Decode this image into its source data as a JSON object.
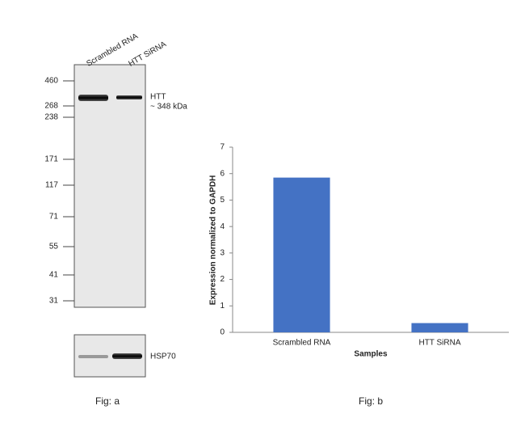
{
  "blot": {
    "lanes": [
      "Scrambled RNA",
      "HTT SiRNA"
    ],
    "markers": [
      "460",
      "268",
      "238",
      "171",
      "117",
      "71",
      "55",
      "41",
      "31"
    ],
    "band_labels": [
      "HTT",
      "~ 348 kDa"
    ],
    "control_label": "HSP70",
    "caption": "Fig: a"
  },
  "chart_data": {
    "type": "bar",
    "caption": "Fig: b",
    "x_label": "Samples",
    "y_label": "Expression normalized to GAPDH",
    "categories": [
      "Scrambled RNA",
      "HTT SiRNA"
    ],
    "values": [
      5.85,
      0.35
    ],
    "color": "#4472c4",
    "ylim": [
      0,
      7
    ],
    "yticks": [
      0,
      1,
      2,
      3,
      4,
      5,
      6,
      7
    ]
  }
}
